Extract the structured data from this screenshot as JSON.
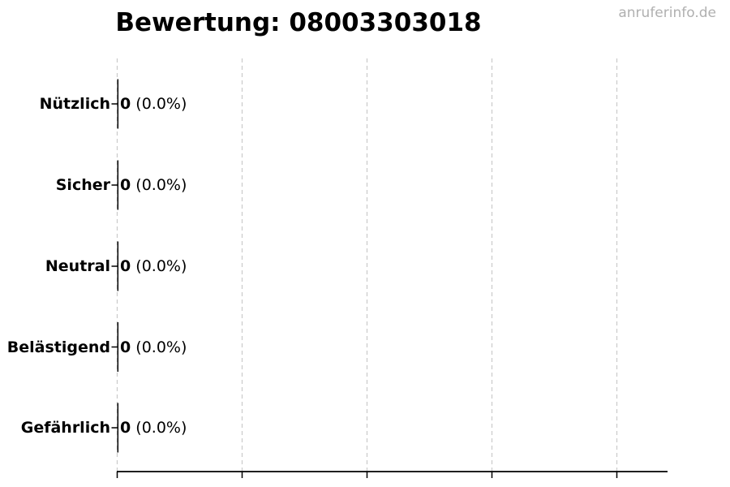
{
  "watermark": "anruferinfo.de",
  "chart_data": {
    "type": "bar",
    "orientation": "horizontal",
    "title": "Bewertung: 08003303018",
    "categories": [
      "Nützlich",
      "Sicher",
      "Neutral",
      "Belästigend",
      "Gefährlich"
    ],
    "values": [
      0,
      0,
      0,
      0,
      0
    ],
    "percentages": [
      0.0,
      0.0,
      0.0,
      0.0,
      0.0
    ],
    "rows": [
      {
        "label": "Nützlich",
        "value_label": "0",
        "percent_label": "(0.0%)"
      },
      {
        "label": "Sicher",
        "value_label": "0",
        "percent_label": "(0.0%)"
      },
      {
        "label": "Neutral",
        "value_label": "0",
        "percent_label": "(0.0%)"
      },
      {
        "label": "Belästigend",
        "value_label": "0",
        "percent_label": "(0.0%)"
      },
      {
        "label": "Gefährlich",
        "value_label": "0",
        "percent_label": "(0.0%)"
      }
    ],
    "xlabel": "",
    "ylabel": "",
    "x_tick_labels_visible": false,
    "grid": "vertical-dashed",
    "legend": "none",
    "colors": {
      "bar": "#000000",
      "axis": "#000000",
      "grid": "#cccccc",
      "text": "#000000",
      "watermark": "#b0b0b0",
      "background": "#ffffff"
    }
  }
}
